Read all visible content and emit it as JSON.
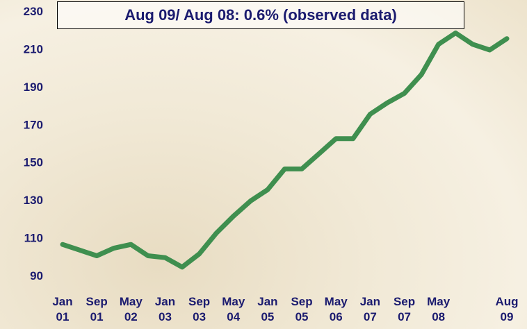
{
  "chart_data": {
    "type": "line",
    "title": "Aug 09/ Aug 08: 0.6% (observed data)",
    "categories": [
      "Jan 01",
      null,
      "Sep 01",
      null,
      "May 02",
      null,
      "Jan 03",
      null,
      "Sep 03",
      null,
      "May 04",
      null,
      "Jan 05",
      null,
      "Sep 05",
      null,
      "May 06",
      null,
      "Jan 07",
      null,
      "Sep 07",
      null,
      "May 08",
      null,
      null,
      null,
      "Aug 09"
    ],
    "series": [
      {
        "color": "#3f8f4f",
        "values": [
          107,
          104,
          101,
          105,
          107,
          101,
          100,
          95,
          102,
          113,
          122,
          130,
          136,
          147,
          147,
          155,
          163,
          163,
          176,
          182,
          187,
          197,
          213,
          219,
          213,
          210,
          216
        ]
      }
    ],
    "ylim": [
      85,
      235
    ],
    "yticks": [
      90,
      110,
      130,
      150,
      170,
      190,
      210,
      230
    ]
  }
}
